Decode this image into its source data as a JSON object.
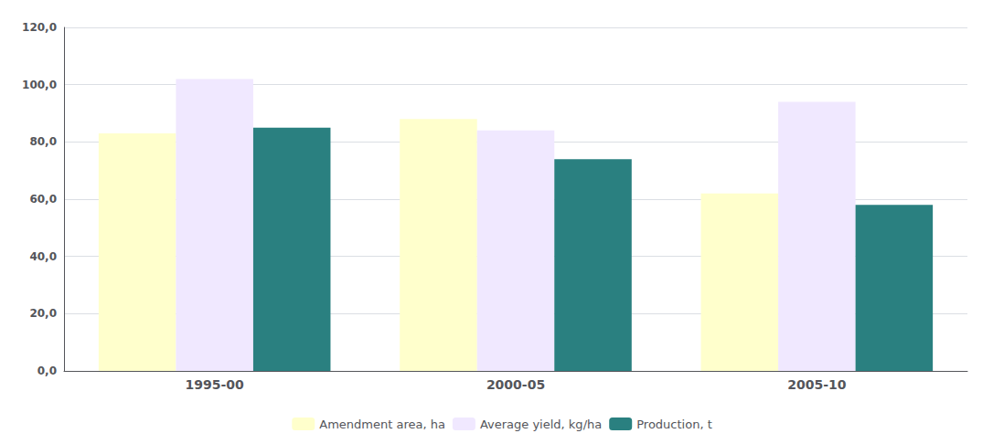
{
  "chart_data": {
    "type": "bar",
    "categories": [
      "1995-00",
      "2000-05",
      "2005-10"
    ],
    "series": [
      {
        "name": "Amendment area, ha",
        "color": "#FFFFCC",
        "values": [
          83,
          88,
          62
        ]
      },
      {
        "name": "Average yield, kg/ha",
        "color": "#F0E8FF",
        "values": [
          102,
          84,
          94
        ]
      },
      {
        "name": "Production, t",
        "color": "#2A8080",
        "values": [
          85,
          74,
          58
        ]
      }
    ],
    "ylim": [
      0,
      120
    ],
    "yticks": [
      {
        "value": 0,
        "label": "0,0"
      },
      {
        "value": 20,
        "label": "20,0"
      },
      {
        "value": 40,
        "label": "40,0"
      },
      {
        "value": 60,
        "label": "60,0"
      },
      {
        "value": 80,
        "label": "80,0"
      },
      {
        "value": 100,
        "label": "100,0"
      },
      {
        "value": 120,
        "label": "120,0"
      }
    ],
    "grid": true,
    "legend": "bottom"
  }
}
